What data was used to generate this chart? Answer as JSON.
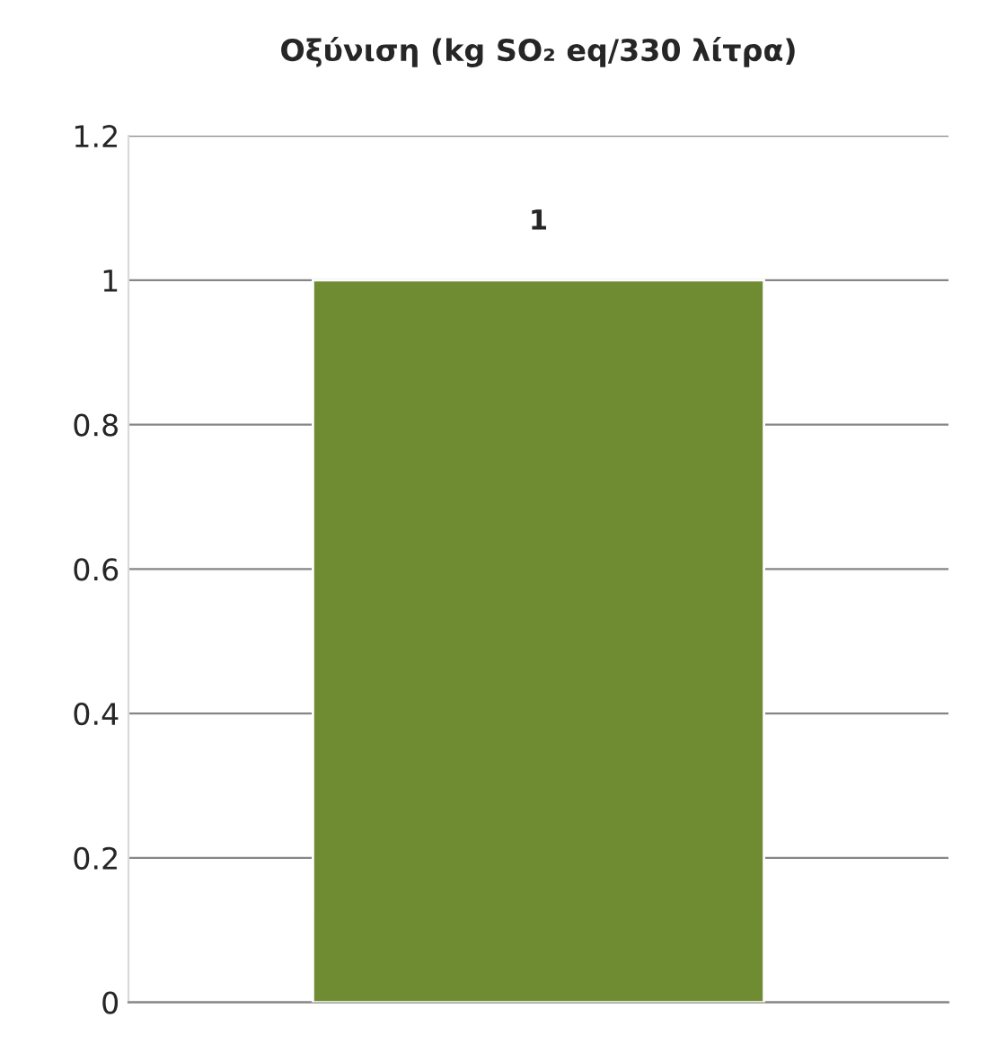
{
  "chart_data": {
    "type": "bar",
    "title": "Οξύνιση (kg SO₂ eq/330 λίτρα)",
    "categories": [
      null
    ],
    "values": [
      1
    ],
    "color": "#6f8c32",
    "ylim": [
      0,
      1.2
    ],
    "yticks": [
      0,
      0.2,
      0.4,
      0.6,
      0.8,
      1,
      1.2
    ],
    "grid": "y",
    "data_labels": true
  }
}
